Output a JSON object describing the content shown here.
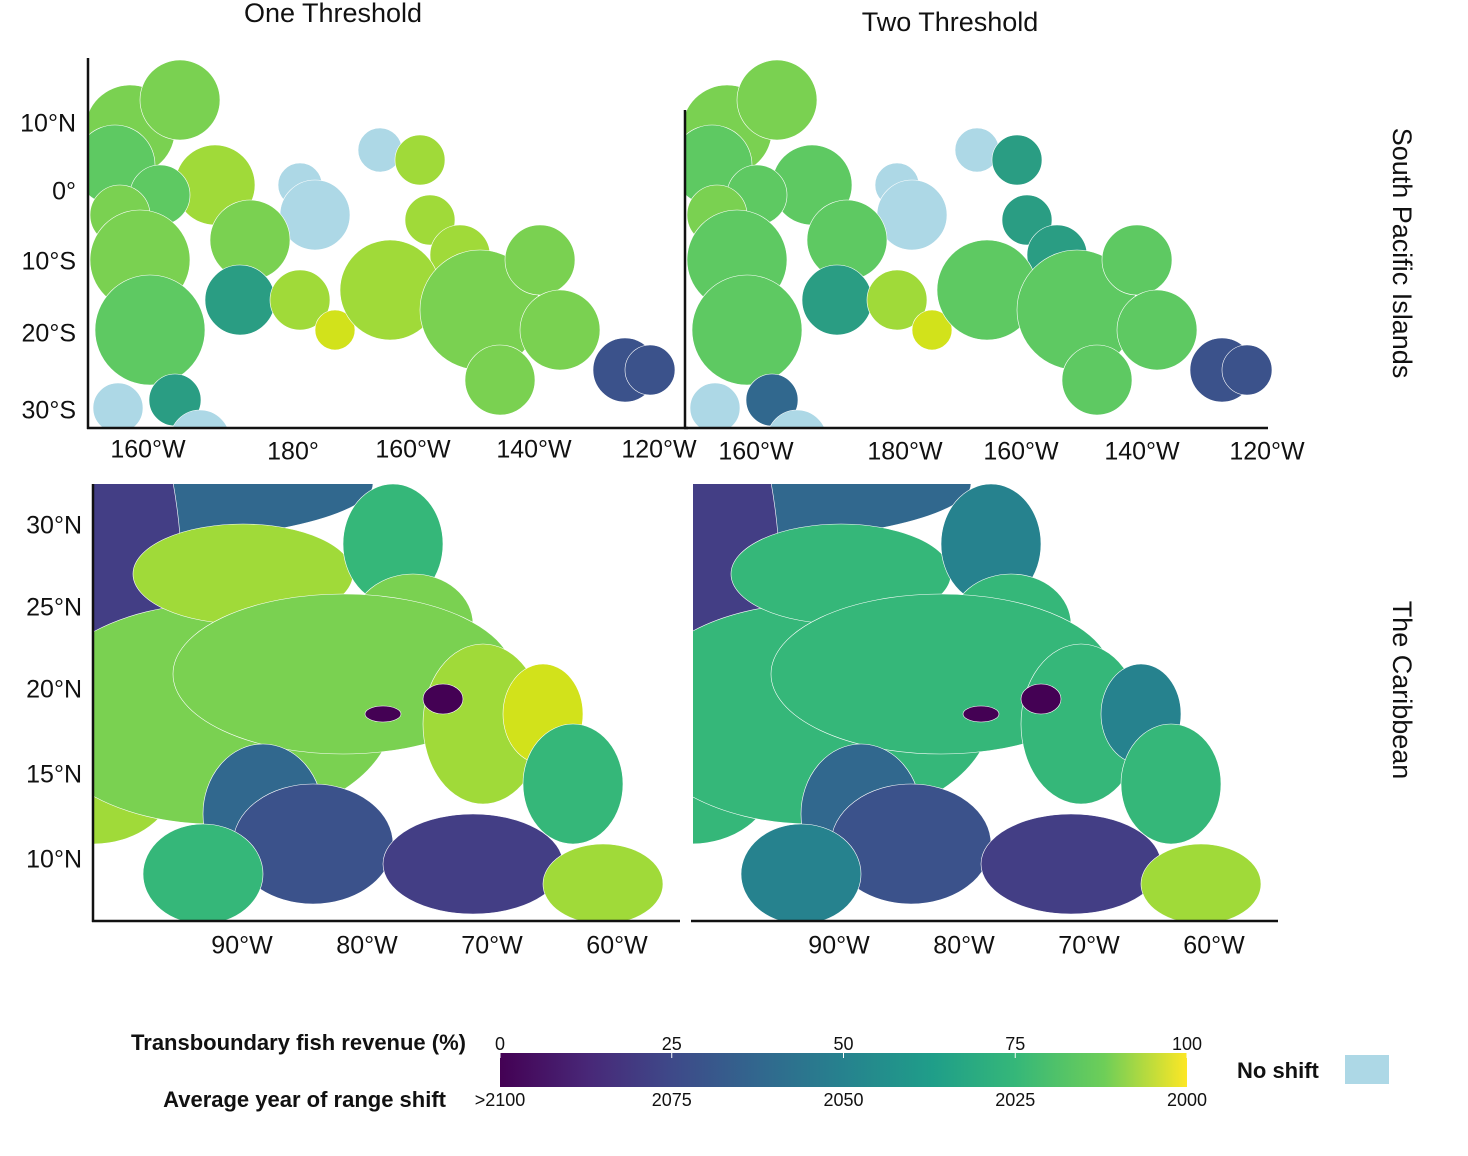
{
  "columns": [
    "One Threshold",
    "Two Threshold"
  ],
  "rows": [
    "South Pacific Islands",
    "The Caribbean"
  ],
  "pacific": {
    "y_labels": [
      "10°N",
      "0°",
      "10°S",
      "20°S",
      "30°S"
    ],
    "x_labels_one": [
      "160°W",
      "180°",
      "160°W",
      "140°W",
      "120°W"
    ],
    "x_labels_two": [
      "160°W",
      "180°W",
      "160°W",
      "140°W",
      "120°W"
    ]
  },
  "caribbean": {
    "y_labels": [
      "30°N",
      "25°N",
      "20°N",
      "15°N",
      "10°N"
    ],
    "x_labels_one": [
      "90°W",
      "80°W",
      "70°W",
      "60°W"
    ],
    "x_labels_two": [
      "90°W",
      "80°W",
      "70°W",
      "60°W"
    ]
  },
  "legend": {
    "revenue_title": "Transboundary fish revenue (%)",
    "revenue_ticks": [
      0,
      25,
      50,
      75,
      100
    ],
    "year_title": "Average year of range shift",
    "year_ticks": [
      ">2100",
      "2075",
      "2050",
      "2025",
      "2000"
    ],
    "no_shift": "No shift"
  }
}
